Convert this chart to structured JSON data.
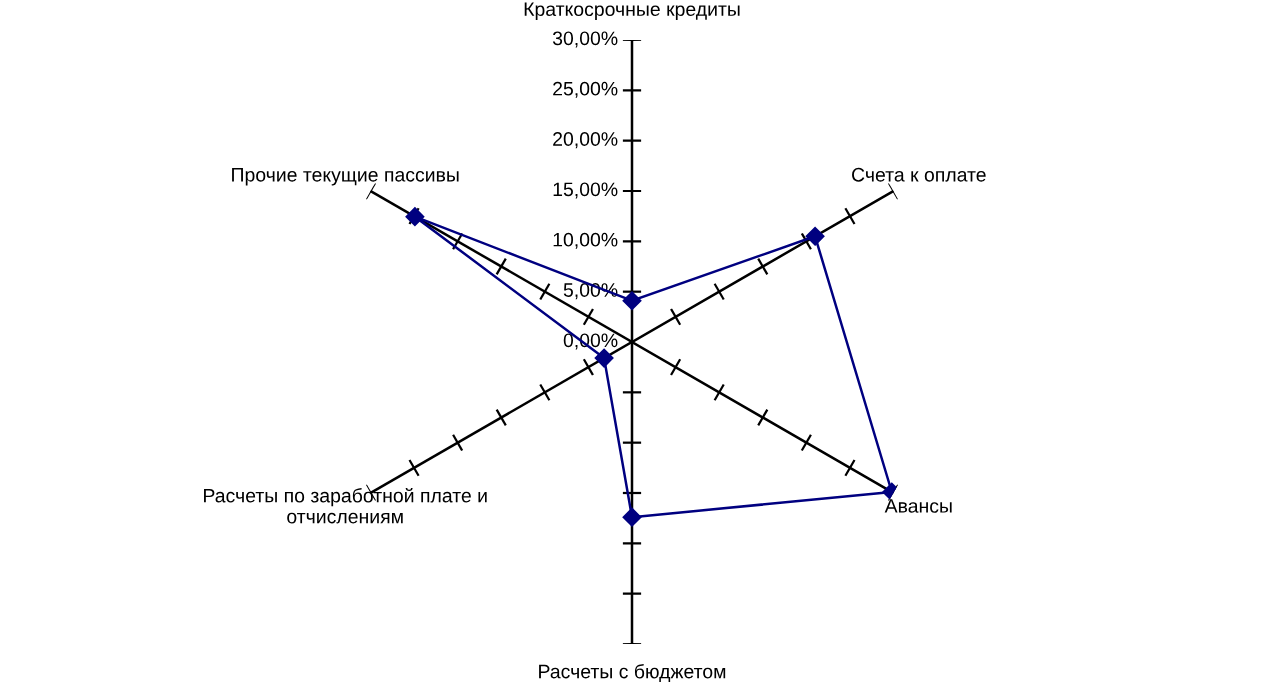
{
  "chart_data": {
    "type": "radar",
    "categories": [
      "Краткосрочные кредиты",
      "Счета к оплате",
      "Авансы",
      "Расчеты с бюджетом",
      "Расчеты по заработной плате и\nотчислениям",
      "Прочие текущие пассивы"
    ],
    "series": [
      {
        "color": "#000080",
        "values": [
          4.1,
          21.0,
          29.8,
          17.4,
          3.2,
          24.9
        ]
      }
    ],
    "ylim": [
      0,
      30
    ],
    "yticks": [
      {
        "value": 0,
        "label": "0,00%"
      },
      {
        "value": 5,
        "label": "5,00%"
      },
      {
        "value": 10,
        "label": "10,00%"
      },
      {
        "value": 15,
        "label": "15,00%"
      },
      {
        "value": 20,
        "label": "20,00%"
      },
      {
        "value": 25,
        "label": "25,00%"
      },
      {
        "value": 30,
        "label": "30,00%"
      }
    ],
    "marker": "diamond"
  }
}
